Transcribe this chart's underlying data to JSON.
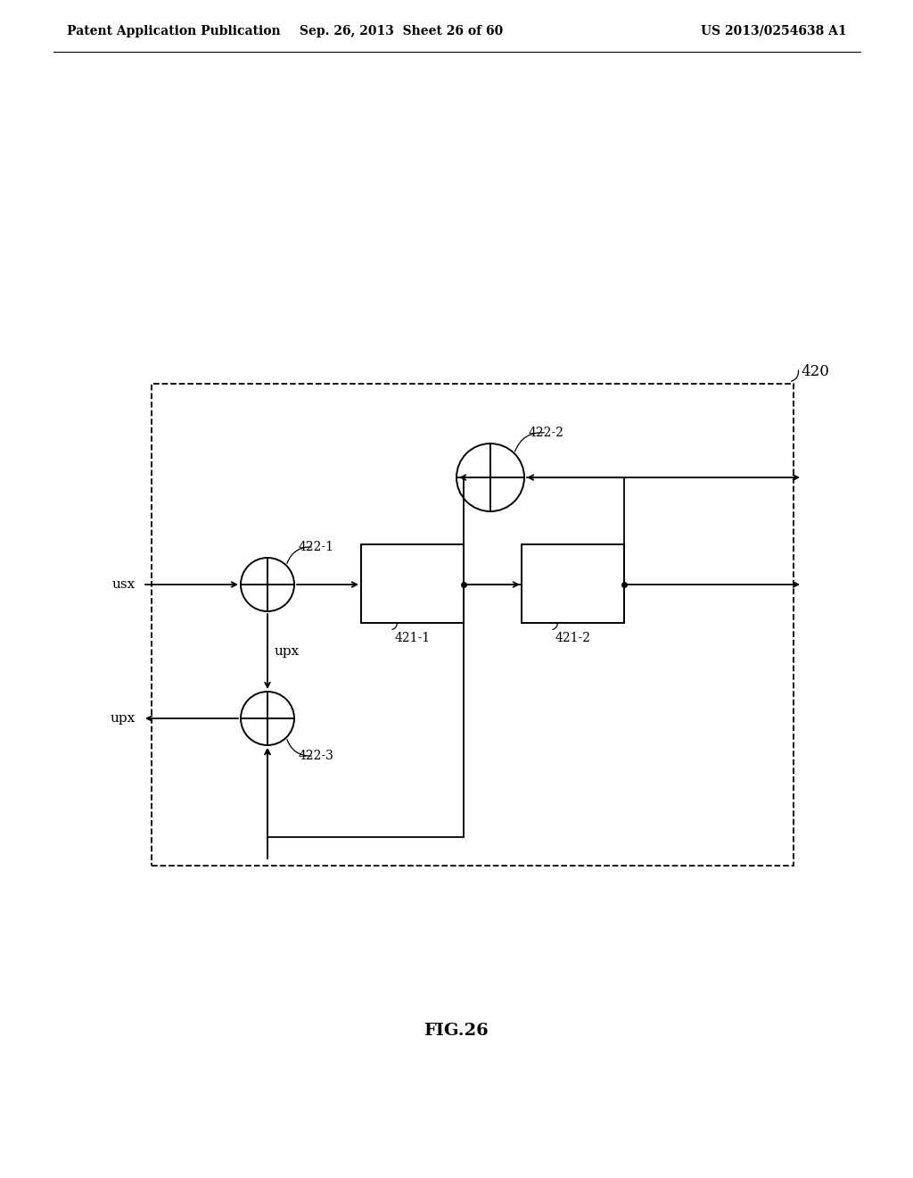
{
  "bg_color": "#ffffff",
  "header_left": "Patent Application Publication",
  "header_mid": "Sep. 26, 2013  Sheet 26 of 60",
  "header_right": "US 2013/0254638 A1",
  "fig_label": "FIG.26",
  "label_420": "420",
  "label_4221": "422-1",
  "label_4222": "422-2",
  "label_4223": "422-3",
  "label_4211": "421-1",
  "label_4212": "421-2",
  "label_usx": "usx",
  "label_upx_mid": "upx",
  "label_upx_left": "upx"
}
